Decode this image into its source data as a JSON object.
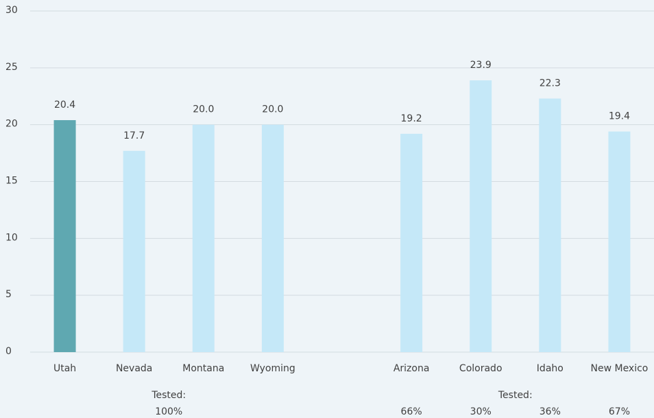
{
  "chart_data": {
    "type": "bar",
    "categories": [
      "Utah",
      "Nevada",
      "Montana",
      "Wyoming",
      null,
      "Arizona",
      "Colorado",
      "Idaho",
      "New Mexico"
    ],
    "values": [
      20.4,
      17.7,
      20.0,
      20.0,
      null,
      19.2,
      23.9,
      22.3,
      19.4
    ],
    "value_labels": [
      "20.4",
      "17.7",
      "20.0",
      "20.0",
      null,
      "19.2",
      "23.9",
      "22.3",
      "19.4"
    ],
    "colors": [
      "#5fa8b1",
      "#c5e8f8",
      "#c5e8f8",
      "#c5e8f8",
      null,
      "#c5e8f8",
      "#c5e8f8",
      "#c5e8f8",
      "#c5e8f8"
    ],
    "ylim": [
      0,
      30
    ],
    "yticks": [
      0,
      5,
      10,
      15,
      20,
      25,
      30
    ],
    "grid": true,
    "tested": [
      {
        "label": "Tested:",
        "values": [
          "100%"
        ]
      },
      {
        "label": "Tested:",
        "values": [
          "66%",
          "30%",
          "36%",
          "67%"
        ]
      }
    ]
  }
}
